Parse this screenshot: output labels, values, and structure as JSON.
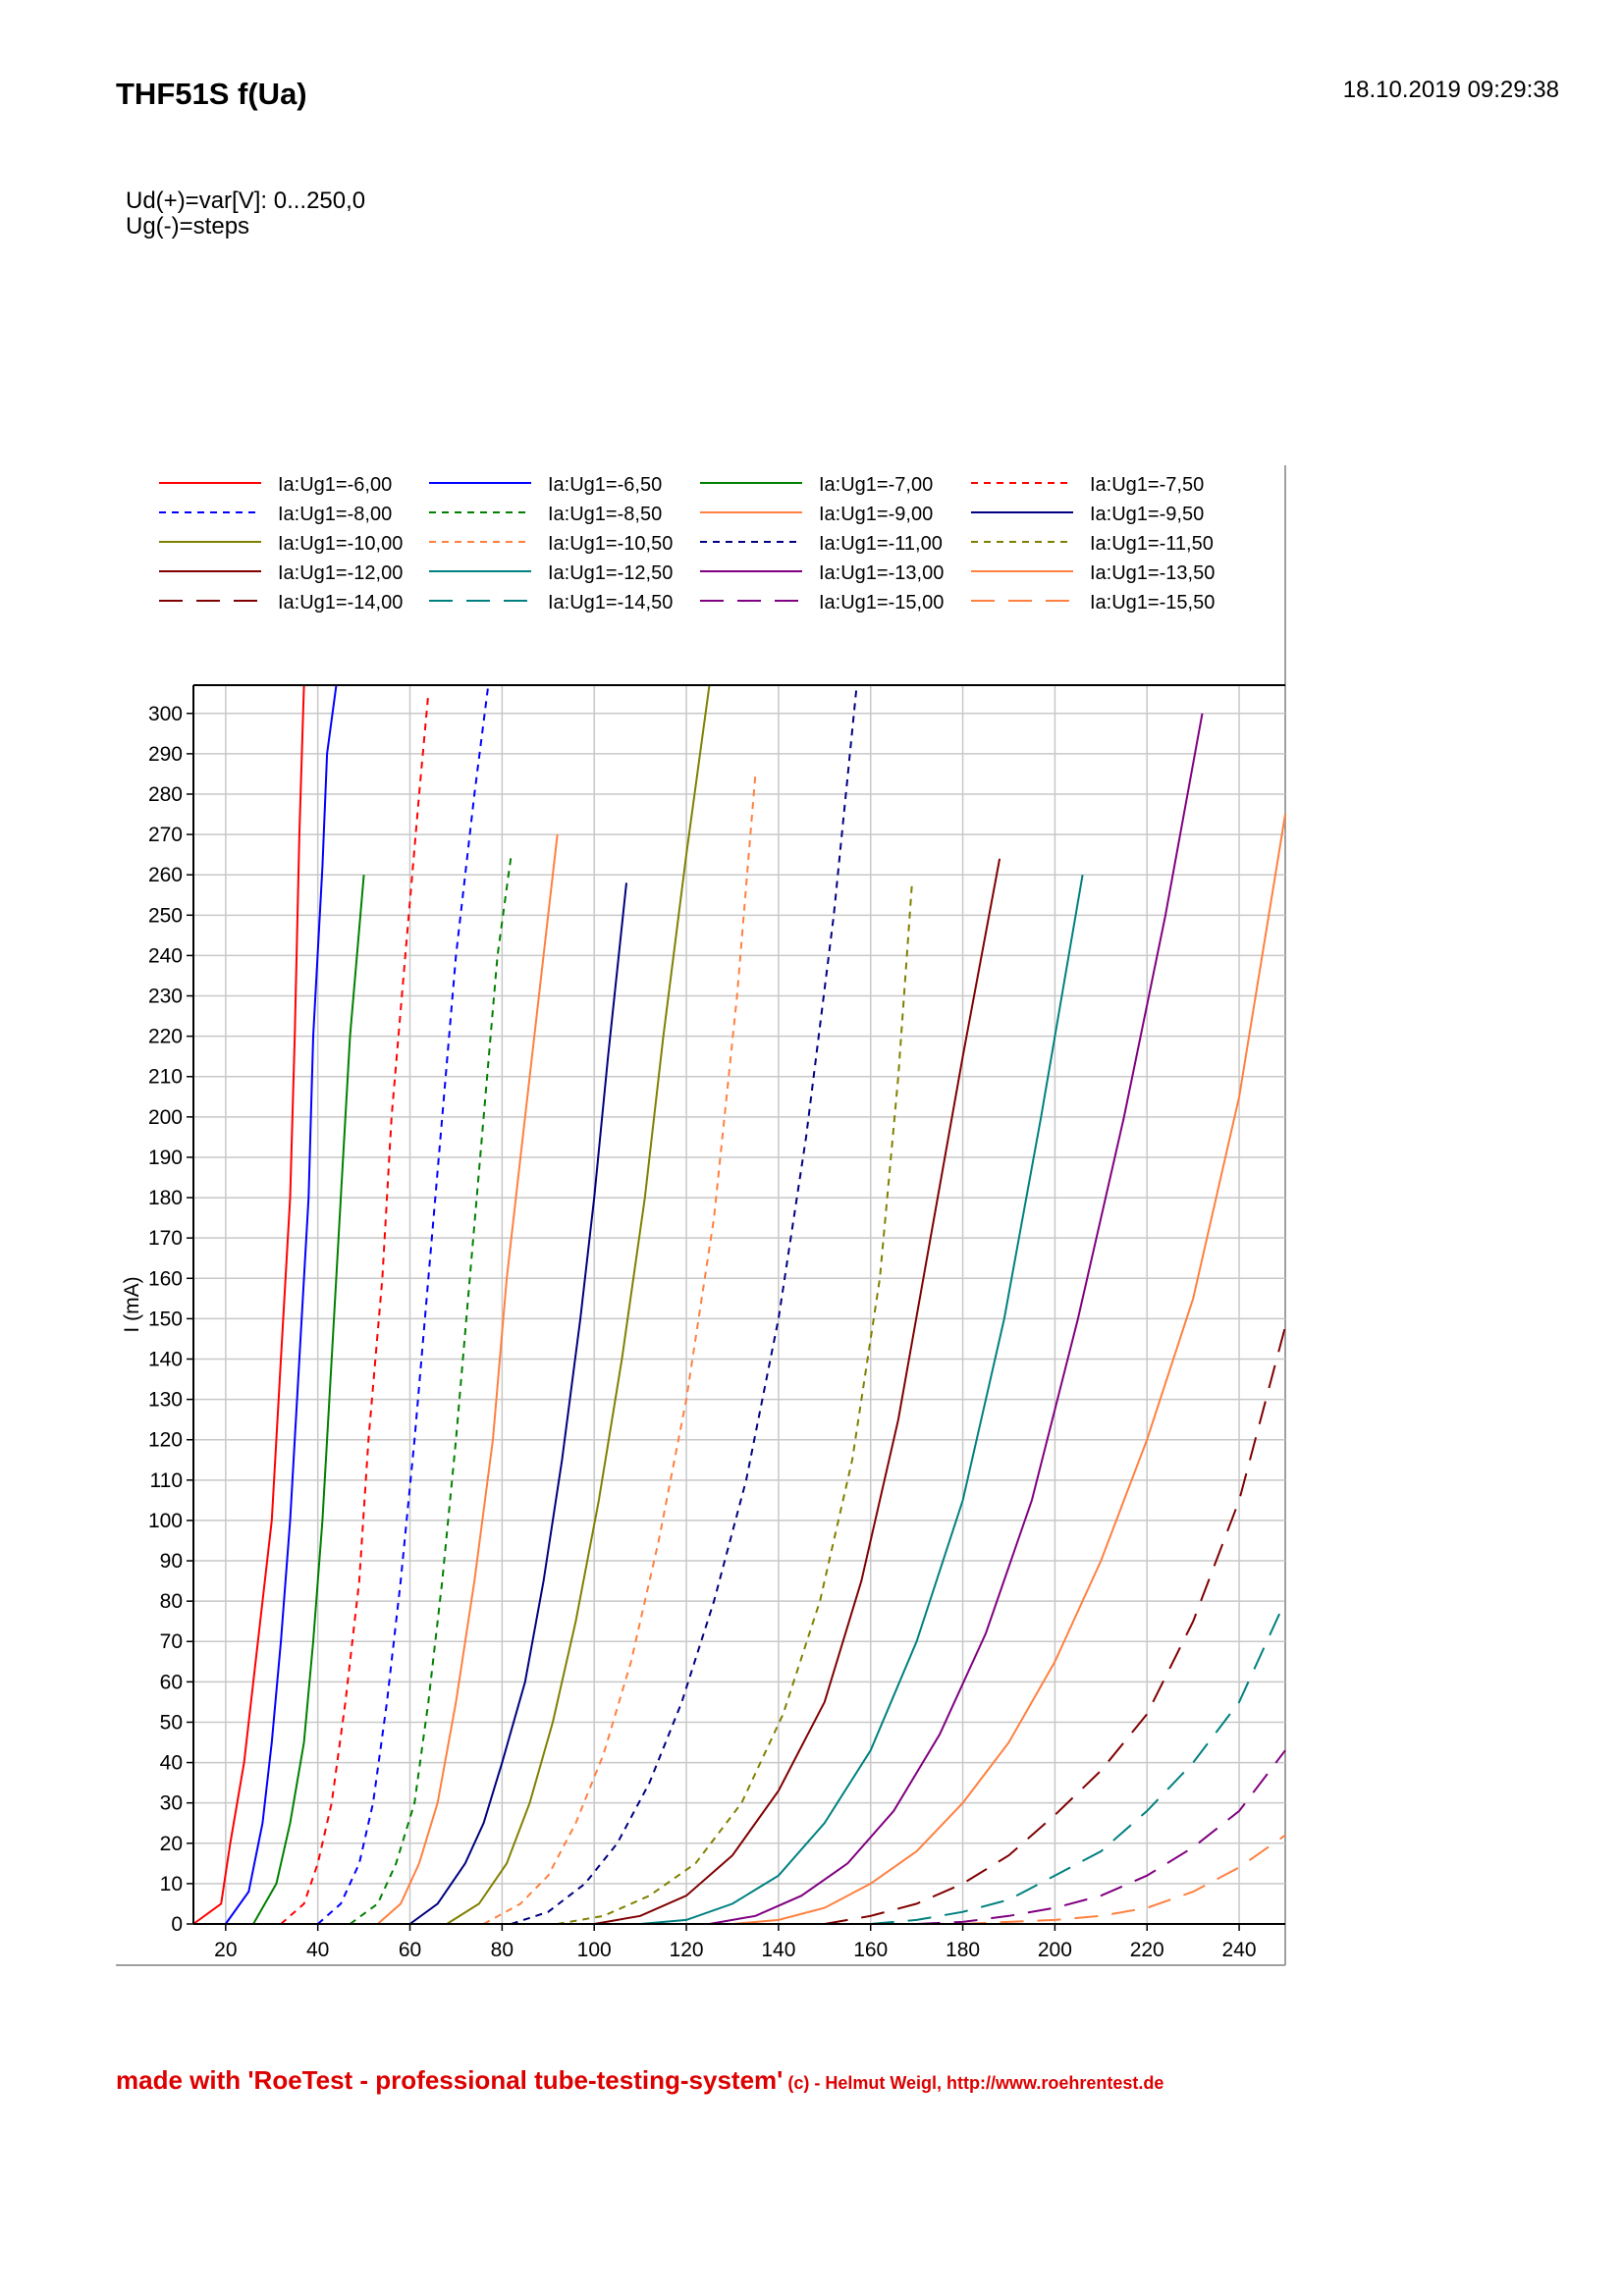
{
  "header": {
    "title": "THF51S f(Ua)",
    "timestamp": "18.10.2019  09:29:38",
    "param1": "Ud(+)=var[V]: 0...250,0",
    "param2": "Ug(-)=steps"
  },
  "footer": {
    "main": "made with 'RoeTest - professional tube-testing-system'",
    "credit": " (c) - Helmut Weigl, http://www.roehrentest.de"
  },
  "chart_data": {
    "type": "line",
    "title": "",
    "xlabel": "",
    "ylabel": "I (mA)",
    "xlim": [
      13,
      250
    ],
    "ylim": [
      0,
      307
    ],
    "xticks": [
      20,
      40,
      60,
      80,
      100,
      120,
      140,
      160,
      180,
      200,
      220,
      240
    ],
    "yticks": [
      0,
      10,
      20,
      30,
      40,
      50,
      60,
      70,
      80,
      90,
      100,
      110,
      120,
      130,
      140,
      150,
      160,
      170,
      180,
      190,
      200,
      210,
      220,
      230,
      240,
      250,
      260,
      270,
      280,
      290,
      300
    ],
    "grid": true,
    "legend_position": "top",
    "series": [
      {
        "name": "Ia:Ug1=-6,00",
        "color": "#ff0000",
        "dash": "solid",
        "points": [
          [
            13,
            0
          ],
          [
            19,
            5
          ],
          [
            21,
            20
          ],
          [
            24,
            40
          ],
          [
            26,
            60
          ],
          [
            28,
            80
          ],
          [
            30,
            100
          ],
          [
            32,
            140
          ],
          [
            34,
            180
          ],
          [
            35,
            220
          ],
          [
            36,
            270
          ],
          [
            37,
            307
          ]
        ]
      },
      {
        "name": "Ia:Ug1=-6,50",
        "color": "#0000ff",
        "dash": "solid",
        "points": [
          [
            20,
            0
          ],
          [
            25,
            8
          ],
          [
            28,
            25
          ],
          [
            30,
            45
          ],
          [
            32,
            70
          ],
          [
            34,
            100
          ],
          [
            36,
            140
          ],
          [
            38,
            180
          ],
          [
            39,
            220
          ],
          [
            41,
            262
          ],
          [
            42,
            290
          ],
          [
            44,
            307
          ]
        ]
      },
      {
        "name": "Ia:Ug1=-7,00",
        "color": "#008000",
        "dash": "solid",
        "points": [
          [
            26,
            0
          ],
          [
            31,
            10
          ],
          [
            34,
            25
          ],
          [
            37,
            45
          ],
          [
            39,
            70
          ],
          [
            41,
            100
          ],
          [
            43,
            140
          ],
          [
            45,
            180
          ],
          [
            47,
            220
          ],
          [
            50,
            260
          ]
        ]
      },
      {
        "name": "Ia:Ug1=-7,50",
        "color": "#ff0000",
        "dash": "dash",
        "points": [
          [
            32,
            0
          ],
          [
            37,
            5
          ],
          [
            40,
            15
          ],
          [
            43,
            30
          ],
          [
            46,
            55
          ],
          [
            49,
            85
          ],
          [
            51,
            120
          ],
          [
            54,
            160
          ],
          [
            56,
            200
          ],
          [
            59,
            240
          ],
          [
            62,
            280
          ],
          [
            64,
            305
          ]
        ]
      },
      {
        "name": "Ia:Ug1=-8,00",
        "color": "#0000ff",
        "dash": "dash",
        "points": [
          [
            40,
            0
          ],
          [
            45,
            5
          ],
          [
            49,
            15
          ],
          [
            52,
            30
          ],
          [
            55,
            55
          ],
          [
            58,
            85
          ],
          [
            61,
            120
          ],
          [
            64,
            160
          ],
          [
            67,
            200
          ],
          [
            70,
            240
          ],
          [
            74,
            280
          ],
          [
            77,
            307
          ]
        ]
      },
      {
        "name": "Ia:Ug1=-8,50",
        "color": "#008000",
        "dash": "dash",
        "points": [
          [
            47,
            0
          ],
          [
            53,
            5
          ],
          [
            57,
            15
          ],
          [
            61,
            30
          ],
          [
            64,
            55
          ],
          [
            67,
            85
          ],
          [
            70,
            120
          ],
          [
            73,
            160
          ],
          [
            76,
            200
          ],
          [
            79,
            240
          ],
          [
            82,
            265
          ]
        ]
      },
      {
        "name": "Ia:Ug1=-9,00",
        "color": "#ff8040",
        "dash": "solid",
        "points": [
          [
            53,
            0
          ],
          [
            58,
            5
          ],
          [
            62,
            15
          ],
          [
            66,
            30
          ],
          [
            70,
            55
          ],
          [
            74,
            85
          ],
          [
            78,
            120
          ],
          [
            81,
            160
          ],
          [
            85,
            200
          ],
          [
            89,
            240
          ],
          [
            92,
            270
          ]
        ]
      },
      {
        "name": "Ia:Ug1=-9,50",
        "color": "#000080",
        "dash": "solid",
        "points": [
          [
            60,
            0
          ],
          [
            66,
            5
          ],
          [
            72,
            15
          ],
          [
            76,
            25
          ],
          [
            80,
            40
          ],
          [
            85,
            60
          ],
          [
            89,
            85
          ],
          [
            93,
            115
          ],
          [
            97,
            150
          ],
          [
            100,
            180
          ],
          [
            103,
            215
          ],
          [
            107,
            258
          ]
        ]
      },
      {
        "name": "Ia:Ug1=-10,00",
        "color": "#808000",
        "dash": "solid",
        "points": [
          [
            68,
            0
          ],
          [
            75,
            5
          ],
          [
            81,
            15
          ],
          [
            86,
            30
          ],
          [
            91,
            50
          ],
          [
            96,
            75
          ],
          [
            101,
            105
          ],
          [
            106,
            140
          ],
          [
            111,
            180
          ],
          [
            115,
            220
          ],
          [
            120,
            265
          ],
          [
            125,
            307
          ]
        ]
      },
      {
        "name": "Ia:Ug1=-10,50",
        "color": "#ff8040",
        "dash": "dash",
        "points": [
          [
            76,
            0
          ],
          [
            84,
            5
          ],
          [
            90,
            12
          ],
          [
            96,
            25
          ],
          [
            102,
            42
          ],
          [
            108,
            65
          ],
          [
            114,
            95
          ],
          [
            120,
            130
          ],
          [
            126,
            175
          ],
          [
            131,
            230
          ],
          [
            135,
            285
          ]
        ]
      },
      {
        "name": "Ia:Ug1=-11,00",
        "color": "#000080",
        "dash": "dash",
        "points": [
          [
            82,
            0
          ],
          [
            90,
            3
          ],
          [
            98,
            10
          ],
          [
            105,
            20
          ],
          [
            112,
            35
          ],
          [
            119,
            55
          ],
          [
            126,
            80
          ],
          [
            133,
            110
          ],
          [
            140,
            150
          ],
          [
            146,
            195
          ],
          [
            152,
            250
          ],
          [
            157,
            307
          ]
        ]
      },
      {
        "name": "Ia:Ug1=-11,50",
        "color": "#808000",
        "dash": "dash",
        "points": [
          [
            92,
            0
          ],
          [
            102,
            2
          ],
          [
            112,
            7
          ],
          [
            122,
            15
          ],
          [
            132,
            30
          ],
          [
            141,
            52
          ],
          [
            149,
            80
          ],
          [
            156,
            115
          ],
          [
            162,
            160
          ],
          [
            166,
            210
          ],
          [
            169,
            258
          ]
        ]
      },
      {
        "name": "Ia:Ug1=-12,00",
        "color": "#800000",
        "dash": "solid",
        "points": [
          [
            100,
            0
          ],
          [
            110,
            2
          ],
          [
            120,
            7
          ],
          [
            130,
            17
          ],
          [
            140,
            33
          ],
          [
            150,
            55
          ],
          [
            158,
            85
          ],
          [
            166,
            125
          ],
          [
            173,
            170
          ],
          [
            180,
            215
          ],
          [
            188,
            264
          ]
        ]
      },
      {
        "name": "Ia:Ug1=-12,50",
        "color": "#008080",
        "dash": "solid",
        "points": [
          [
            110,
            0
          ],
          [
            120,
            1
          ],
          [
            130,
            5
          ],
          [
            140,
            12
          ],
          [
            150,
            25
          ],
          [
            160,
            43
          ],
          [
            170,
            70
          ],
          [
            180,
            105
          ],
          [
            189,
            150
          ],
          [
            197,
            200
          ],
          [
            206,
            260
          ]
        ]
      },
      {
        "name": "Ia:Ug1=-13,00",
        "color": "#800080",
        "dash": "solid",
        "points": [
          [
            125,
            0
          ],
          [
            135,
            2
          ],
          [
            145,
            7
          ],
          [
            155,
            15
          ],
          [
            165,
            28
          ],
          [
            175,
            47
          ],
          [
            185,
            72
          ],
          [
            195,
            105
          ],
          [
            205,
            150
          ],
          [
            215,
            200
          ],
          [
            224,
            250
          ],
          [
            232,
            300
          ]
        ]
      },
      {
        "name": "Ia:Ug1=-13,50",
        "color": "#ff8040",
        "dash": "solid",
        "points": [
          [
            130,
            0
          ],
          [
            140,
            1
          ],
          [
            150,
            4
          ],
          [
            160,
            10
          ],
          [
            170,
            18
          ],
          [
            180,
            30
          ],
          [
            190,
            45
          ],
          [
            200,
            65
          ],
          [
            210,
            90
          ],
          [
            220,
            120
          ],
          [
            230,
            155
          ],
          [
            240,
            205
          ],
          [
            250,
            275
          ]
        ]
      },
      {
        "name": "Ia:Ug1=-14,00",
        "color": "#800000",
        "dash": "longdash",
        "points": [
          [
            150,
            0
          ],
          [
            160,
            2
          ],
          [
            170,
            5
          ],
          [
            180,
            10
          ],
          [
            190,
            17
          ],
          [
            200,
            27
          ],
          [
            210,
            38
          ],
          [
            220,
            52
          ],
          [
            230,
            75
          ],
          [
            240,
            105
          ],
          [
            250,
            148
          ]
        ]
      },
      {
        "name": "Ia:Ug1=-14,50",
        "color": "#008080",
        "dash": "longdash",
        "points": [
          [
            160,
            0
          ],
          [
            170,
            1
          ],
          [
            180,
            3
          ],
          [
            190,
            6
          ],
          [
            200,
            12
          ],
          [
            210,
            18
          ],
          [
            220,
            28
          ],
          [
            230,
            40
          ],
          [
            240,
            55
          ],
          [
            250,
            80
          ]
        ]
      },
      {
        "name": "Ia:Ug1=-15,00",
        "color": "#800080",
        "dash": "longdash",
        "points": [
          [
            170,
            0
          ],
          [
            180,
            0.5
          ],
          [
            190,
            2
          ],
          [
            200,
            4
          ],
          [
            210,
            7
          ],
          [
            220,
            12
          ],
          [
            230,
            19
          ],
          [
            240,
            28
          ],
          [
            250,
            43
          ]
        ]
      },
      {
        "name": "Ia:Ug1=-15,50",
        "color": "#ff8040",
        "dash": "longdash",
        "points": [
          [
            180,
            0
          ],
          [
            190,
            0.5
          ],
          [
            200,
            1
          ],
          [
            210,
            2
          ],
          [
            220,
            4
          ],
          [
            230,
            8
          ],
          [
            240,
            14
          ],
          [
            250,
            22
          ]
        ]
      }
    ]
  }
}
